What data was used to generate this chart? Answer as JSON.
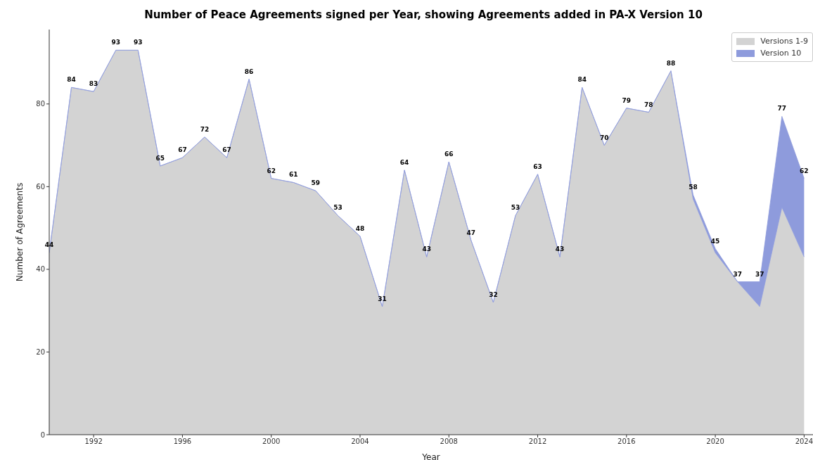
{
  "chart_data": {
    "type": "area",
    "title": "Number of Peace Agreements signed per Year, showing Agreements added in PA-X Version 10",
    "xlabel": "Year",
    "ylabel": "Number of Agreements",
    "x": [
      1990,
      1991,
      1992,
      1993,
      1994,
      1995,
      1996,
      1997,
      1998,
      1999,
      2000,
      2001,
      2002,
      2003,
      2004,
      2005,
      2006,
      2007,
      2008,
      2009,
      2010,
      2011,
      2012,
      2013,
      2014,
      2015,
      2016,
      2017,
      2018,
      2019,
      2020,
      2021,
      2022,
      2023,
      2024
    ],
    "stacked": true,
    "series": [
      {
        "name": "Versions 1-9",
        "color": "#d3d3d3",
        "values": [
          44,
          84,
          83,
          93,
          93,
          65,
          67,
          72,
          67,
          86,
          62,
          61,
          59,
          53,
          48,
          31,
          64,
          43,
          66,
          47,
          32,
          53,
          63,
          43,
          84,
          70,
          79,
          78,
          88,
          57,
          44,
          37,
          31,
          55,
          43
        ]
      },
      {
        "name": "Version 10",
        "color": "#8e9bdc",
        "values": [
          0,
          0,
          0,
          0,
          0,
          0,
          0,
          0,
          0,
          0,
          0,
          0,
          0,
          0,
          0,
          0,
          0,
          0,
          0,
          0,
          0,
          0,
          0,
          0,
          0,
          0,
          0,
          0,
          0,
          1,
          1,
          0,
          6,
          22,
          19
        ]
      }
    ],
    "totals": [
      "44",
      "84",
      "83",
      "93",
      "93",
      "65",
      "67",
      "72",
      "67",
      "86",
      "62",
      "61",
      "59",
      "53",
      "48",
      "31",
      "64",
      "43",
      "66",
      "47",
      "32",
      "53",
      "63",
      "43",
      "84",
      "70",
      "79",
      "78",
      "88",
      "58",
      "45",
      "37",
      "37",
      "77",
      "62"
    ],
    "xlim": [
      1990,
      2024.4
    ],
    "xticks": [
      1992,
      1996,
      2000,
      2004,
      2008,
      2012,
      2016,
      2020,
      2024
    ],
    "ylim": [
      0,
      98
    ],
    "yticks": [
      0,
      20,
      40,
      60,
      80
    ],
    "grid": false,
    "legend": "top right"
  }
}
